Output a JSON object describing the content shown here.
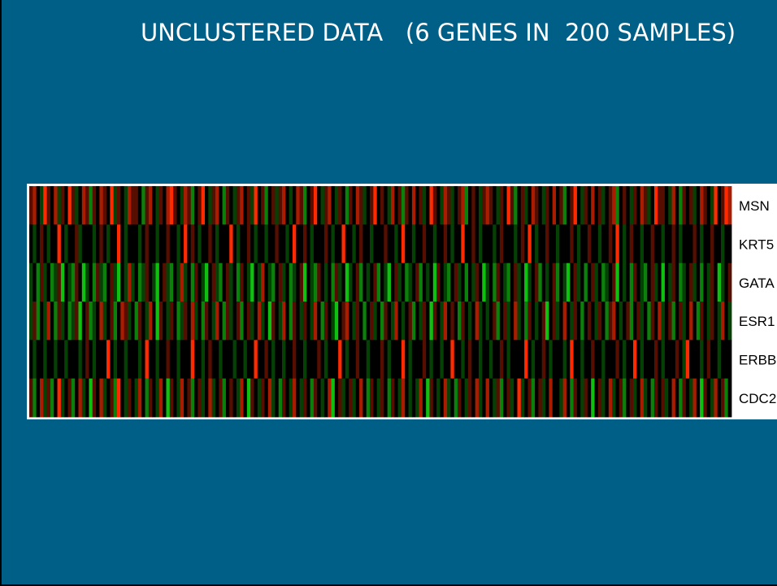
{
  "chart_data": {
    "type": "heatmap",
    "title": "UNCLUSTERED DATA   (6 GENES IN  200 SAMPLES)",
    "rows": [
      "MSN",
      "KRT5",
      "GATA",
      "ESR1",
      "ERBB",
      "CDC2"
    ],
    "zlim": [
      -3,
      3
    ],
    "colors": {
      "low": "#10c010",
      "mid": "#000000",
      "high": "#ff2a00"
    },
    "values": [
      [
        1,
        2,
        0,
        -1,
        3,
        1,
        0,
        2,
        -1,
        1,
        0,
        3,
        1,
        -1,
        0,
        2,
        1,
        -2,
        1,
        0,
        2,
        1,
        0,
        3,
        -1,
        1,
        0,
        -1,
        2,
        1,
        1,
        0,
        -2,
        1,
        2,
        0,
        -1,
        1,
        0,
        2,
        3,
        1,
        0,
        -1,
        2,
        1,
        -2,
        0,
        1,
        3,
        0,
        -1,
        1,
        2,
        0,
        -2,
        1,
        0,
        -1,
        1,
        2,
        0,
        1,
        -1,
        3,
        0,
        1,
        -2,
        0,
        1,
        -1,
        1,
        2,
        0,
        -1,
        0,
        2,
        1,
        -2,
        0,
        1,
        3,
        0,
        -1,
        1,
        2,
        0,
        -1,
        1,
        0,
        -2,
        1,
        0,
        2,
        1,
        -1,
        0,
        1,
        3,
        0,
        1,
        0,
        -1,
        2,
        0,
        1,
        -2,
        1,
        0,
        2,
        0,
        1,
        -1,
        0,
        3,
        1,
        0,
        -1,
        2,
        1,
        -1,
        0,
        1,
        2,
        -2,
        0,
        1,
        0,
        -1,
        1,
        2,
        1,
        0,
        -1,
        1,
        0,
        3,
        1,
        -2,
        0,
        1,
        -1,
        0,
        2,
        1,
        0,
        -1,
        1,
        0,
        2,
        0,
        1,
        -2,
        0,
        1,
        3,
        0,
        -1,
        1,
        0,
        2,
        0,
        1,
        -1,
        0,
        1,
        2,
        -2,
        0,
        1,
        0,
        -1,
        1,
        0,
        2,
        1,
        -1,
        0,
        3,
        1,
        1,
        0,
        -1,
        2,
        0,
        -2,
        1,
        0,
        1,
        -1,
        0,
        2,
        1,
        0,
        -1,
        3,
        0,
        1,
        3,
        2
      ],
      [
        0,
        -1,
        0,
        1,
        0,
        -1,
        0,
        0,
        3,
        0,
        -1,
        0,
        0,
        1,
        -1,
        0,
        0,
        0,
        -1,
        0,
        1,
        0,
        -1,
        0,
        0,
        3,
        0,
        -1,
        0,
        0,
        0,
        -1,
        0,
        1,
        0,
        0,
        -1,
        0,
        0,
        1,
        0,
        0,
        -1,
        0,
        3,
        0,
        1,
        0,
        -1,
        0,
        0,
        1,
        0,
        -1,
        0,
        0,
        0,
        3,
        0,
        -1,
        0,
        0,
        1,
        0,
        -1,
        0,
        0,
        -1,
        0,
        0,
        1,
        0,
        0,
        -1,
        0,
        3,
        0,
        0,
        1,
        0,
        -1,
        0,
        0,
        0,
        1,
        0,
        -1,
        0,
        0,
        3,
        0,
        0,
        -1,
        0,
        1,
        0,
        0,
        -1,
        0,
        0,
        0,
        1,
        0,
        0,
        -1,
        0,
        3,
        0,
        0,
        -1,
        0,
        0,
        1,
        0,
        0,
        -1,
        0,
        0,
        1,
        0,
        -1,
        0,
        0,
        3,
        0,
        0,
        1,
        0,
        -1,
        0,
        0,
        0,
        -1,
        0,
        1,
        0,
        0,
        0,
        -1,
        0,
        1,
        0,
        3,
        0,
        -1,
        0,
        0,
        1,
        0,
        0,
        -1,
        0,
        0,
        0,
        1,
        0,
        -1,
        0,
        0,
        1,
        0,
        0,
        -1,
        0,
        0,
        1,
        0,
        3,
        0,
        -1,
        0,
        1,
        0,
        0,
        -1,
        0,
        0,
        1,
        0,
        0,
        -1,
        0,
        0,
        1,
        0,
        -1,
        0,
        0,
        0,
        1,
        0,
        -1,
        0,
        0,
        1,
        0,
        0,
        -1,
        0,
        0
      ],
      [
        -1,
        0,
        -2,
        1,
        -1,
        0,
        -2,
        -1,
        1,
        -3,
        0,
        -1,
        -2,
        1,
        0,
        -3,
        -1,
        0,
        -2,
        1,
        -1,
        -2,
        0,
        1,
        -1,
        -3,
        0,
        -1,
        2,
        -1,
        0,
        -2,
        -1,
        1,
        0,
        -1,
        -3,
        0,
        1,
        -1,
        -2,
        0,
        -1,
        2,
        -1,
        0,
        -2,
        1,
        0,
        -1,
        -3,
        0,
        1,
        -1,
        -2,
        0,
        1,
        -1,
        0,
        -2,
        1,
        0,
        -1,
        -3,
        0,
        -1,
        2,
        0,
        -1,
        -2,
        0,
        1,
        -1,
        0,
        -2,
        -1,
        0,
        1,
        -3,
        0,
        -1,
        -2,
        1,
        0,
        -1,
        0,
        -2,
        1,
        -1,
        0,
        -3,
        -1,
        0,
        1,
        -2,
        0,
        -1,
        0,
        1,
        -2,
        0,
        -1,
        -3,
        0,
        1,
        -1,
        0,
        -2,
        -1,
        0,
        1,
        -2,
        0,
        -1,
        0,
        -3,
        1,
        0,
        -1,
        -2,
        0,
        1,
        -1,
        0,
        -2,
        0,
        -1,
        1,
        0,
        -3,
        -1,
        0,
        -2,
        1,
        0,
        -1,
        -2,
        0,
        1,
        -1,
        0,
        -3,
        -1,
        0,
        1,
        -2,
        0,
        -1,
        0,
        1,
        -2,
        0,
        -1,
        -3,
        0,
        1,
        -1,
        0,
        -2,
        0,
        1,
        -1,
        0,
        -2,
        -1,
        0,
        1,
        -3,
        0,
        -1,
        0,
        -2,
        1,
        0,
        -1,
        -2,
        0,
        1,
        -1,
        0,
        -3,
        0,
        -1,
        1,
        0,
        -2,
        -1,
        0,
        1,
        -1,
        0,
        -2,
        0,
        -1,
        1,
        0,
        -3,
        -1,
        0,
        1
      ],
      [
        -1,
        1,
        -2,
        0,
        -1,
        2,
        0,
        -2,
        1,
        -1,
        0,
        -2,
        -1,
        1,
        -3,
        0,
        1,
        -2,
        -1,
        0,
        2,
        -1,
        0,
        1,
        -2,
        0,
        2,
        1,
        -1,
        0,
        -2,
        1,
        0,
        -1,
        2,
        0,
        -3,
        1,
        0,
        -1,
        1,
        0,
        -2,
        -1,
        1,
        0,
        2,
        -1,
        0,
        -2,
        1,
        0,
        -1,
        2,
        0,
        -2,
        1,
        -1,
        0,
        1,
        -2,
        0,
        1,
        -1,
        0,
        2,
        -1,
        0,
        -3,
        1,
        0,
        -1,
        2,
        0,
        -2,
        1,
        0,
        -1,
        1,
        0,
        -1,
        2,
        0,
        -2,
        1,
        0,
        -1,
        -3,
        0,
        1,
        2,
        0,
        -1,
        1,
        0,
        -2,
        0,
        1,
        -1,
        0,
        -2,
        1,
        0,
        -1,
        2,
        0,
        -1,
        0,
        1,
        -2,
        0,
        -1,
        1,
        0,
        -3,
        1,
        0,
        -1,
        2,
        0,
        1,
        0,
        -2,
        1,
        0,
        -1,
        0,
        2,
        -1,
        0,
        -1,
        0,
        1,
        -2,
        0,
        1,
        -1,
        0,
        2,
        -1,
        0,
        -2,
        1,
        0,
        -1,
        0,
        1,
        -3,
        0,
        1,
        -1,
        0,
        2,
        0,
        -1,
        1,
        0,
        -2,
        0,
        1,
        0,
        -1,
        1,
        0,
        -2,
        1,
        2,
        0,
        -1,
        0,
        1,
        -2,
        0,
        1,
        -1,
        0,
        -2,
        1,
        0,
        2,
        -1,
        0,
        1,
        -2,
        0,
        1,
        -1,
        0,
        2,
        0,
        -2,
        1,
        0,
        -1,
        1,
        0,
        -1,
        2,
        0,
        -1
      ],
      [
        0,
        -1,
        0,
        0,
        -1,
        0,
        0,
        -1,
        0,
        0,
        -1,
        0,
        0,
        0,
        -1,
        0,
        1,
        0,
        -1,
        0,
        0,
        0,
        3,
        0,
        -1,
        0,
        0,
        -1,
        0,
        0,
        0,
        -1,
        0,
        3,
        0,
        0,
        -1,
        0,
        0,
        1,
        0,
        0,
        -1,
        0,
        0,
        0,
        3,
        0,
        0,
        -1,
        0,
        1,
        0,
        0,
        -1,
        0,
        0,
        0,
        -1,
        0,
        0,
        -1,
        0,
        0,
        3,
        0,
        0,
        1,
        0,
        -1,
        0,
        0,
        -1,
        0,
        0,
        1,
        0,
        0,
        -1,
        0,
        0,
        0,
        1,
        0,
        -1,
        0,
        0,
        0,
        3,
        0,
        -1,
        0,
        0,
        1,
        0,
        0,
        -1,
        0,
        0,
        0,
        1,
        0,
        -1,
        0,
        0,
        0,
        3,
        0,
        -1,
        0,
        0,
        0,
        1,
        0,
        -1,
        0,
        0,
        -1,
        0,
        0,
        3,
        0,
        0,
        -1,
        0,
        1,
        0,
        0,
        -1,
        0,
        0,
        -1,
        0,
        0,
        1,
        0,
        -1,
        0,
        0,
        0,
        0,
        3,
        0,
        -1,
        0,
        0,
        1,
        0,
        -1,
        0,
        0,
        0,
        -1,
        0,
        3,
        0,
        0,
        -1,
        0,
        0,
        1,
        0,
        0,
        -1,
        0,
        0,
        0,
        1,
        0,
        -1,
        0,
        0,
        3,
        0,
        -1,
        0,
        0,
        0,
        1,
        0,
        -1,
        0,
        0,
        0,
        1,
        0,
        -1,
        3,
        0,
        0,
        0,
        -1,
        0,
        1,
        0,
        0,
        -1,
        0,
        0,
        0
      ],
      [
        1,
        -2,
        0,
        2,
        -1,
        1,
        -2,
        0,
        3,
        -1,
        0,
        1,
        -2,
        0,
        2,
        -1,
        0,
        -3,
        1,
        0,
        2,
        -1,
        0,
        1,
        -2,
        3,
        0,
        -1,
        1,
        0,
        -1,
        2,
        0,
        -2,
        1,
        0,
        -1,
        2,
        0,
        -3,
        1,
        0,
        -1,
        2,
        0,
        1,
        -2,
        0,
        1,
        -1,
        0,
        2,
        -1,
        0,
        1,
        -2,
        0,
        1,
        0,
        -1,
        2,
        0,
        -3,
        1,
        0,
        -1,
        1,
        0,
        2,
        -1,
        0,
        -2,
        1,
        0,
        -1,
        2,
        0,
        -1,
        1,
        0,
        -2,
        1,
        0,
        -1,
        0,
        2,
        -3,
        0,
        1,
        -1,
        0,
        1,
        -1,
        0,
        2,
        0,
        -2,
        1,
        0,
        -1,
        1,
        0,
        -2,
        1,
        0,
        -1,
        2,
        0,
        -1,
        0,
        -1,
        2,
        0,
        -3,
        1,
        0,
        -1,
        0,
        2,
        -1,
        0,
        -2,
        1,
        0,
        -1,
        1,
        0,
        2,
        -1,
        0,
        2,
        0,
        -1,
        1,
        -2,
        0,
        1,
        -1,
        0,
        3,
        -1,
        0,
        1,
        -2,
        0,
        1,
        -1,
        0,
        2,
        0,
        0,
        -1,
        2,
        0,
        -2,
        1,
        0,
        -1,
        1,
        0,
        -3,
        0,
        1,
        -1,
        0,
        2,
        -1,
        0,
        1,
        -2,
        0,
        1,
        -1,
        0,
        2,
        -1,
        0,
        -2,
        1,
        0,
        1,
        -1,
        0,
        2,
        0,
        -2,
        1,
        0,
        -1,
        2,
        0,
        -3,
        1,
        0,
        -1,
        2,
        0,
        1,
        -2,
        0
      ]
    ]
  }
}
